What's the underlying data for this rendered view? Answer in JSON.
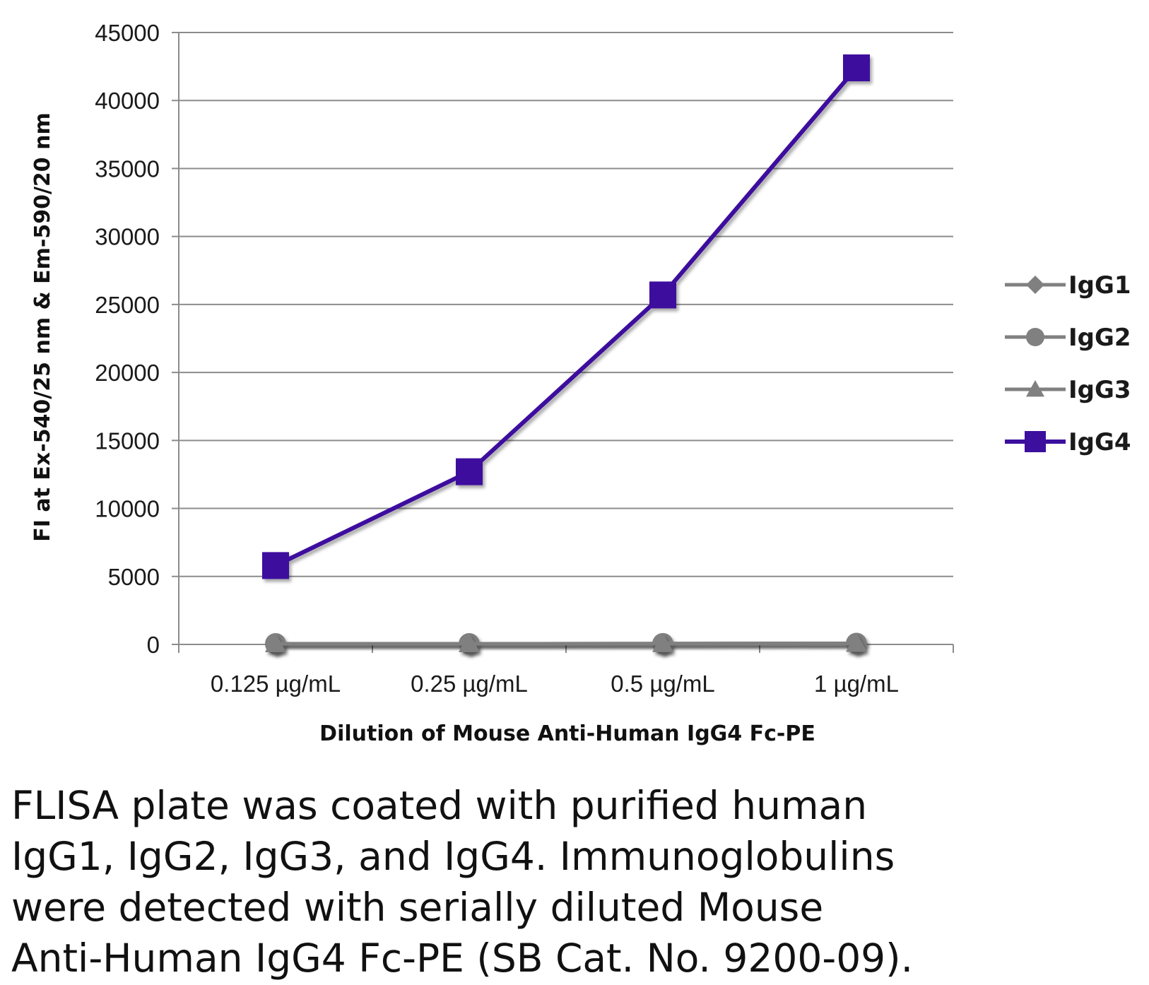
{
  "chart_data": {
    "type": "line",
    "categories": [
      "0.125 µg/mL",
      "0.25 µg/mL",
      "0.5 µg/mL",
      "1 µg/mL"
    ],
    "xlabel": "Dilution of Mouse Anti-Human IgG4 Fc-PE",
    "ylabel": "FI at Ex-540/25 nm & Em-590/20 nm",
    "ylim": [
      0,
      45000
    ],
    "yticks": [
      0,
      5000,
      10000,
      15000,
      20000,
      25000,
      30000,
      35000,
      40000,
      45000
    ],
    "ytick_labels": [
      "0",
      "5000",
      "10000",
      "15000",
      "20000",
      "25000",
      "30000",
      "35000",
      "40000",
      "45000"
    ],
    "grid": true,
    "legend_position": "right",
    "series": [
      {
        "name": "IgG1",
        "values": [
          50,
          50,
          60,
          80
        ],
        "color": "#808080",
        "marker": "diamond"
      },
      {
        "name": "IgG2",
        "values": [
          50,
          50,
          60,
          80
        ],
        "color": "#808080",
        "marker": "circle"
      },
      {
        "name": "IgG3",
        "values": [
          50,
          50,
          60,
          80
        ],
        "color": "#808080",
        "marker": "triangle"
      },
      {
        "name": "IgG4",
        "values": [
          5800,
          12700,
          25700,
          42400
        ],
        "color": "#3d0f9e",
        "marker": "square"
      }
    ]
  },
  "caption": "FLISA plate was coated with purified human\nIgG1, IgG2, IgG3, and IgG4.  Immunoglobulins\nwere detected with serially diluted Mouse\nAnti-Human IgG4 Fc-PE (SB Cat. No. 9200-09)."
}
